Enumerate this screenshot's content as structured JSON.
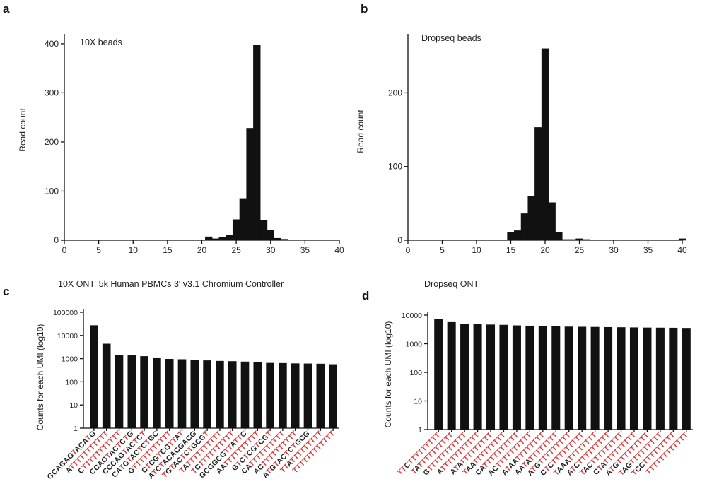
{
  "colors": {
    "bar": "#111111",
    "polyT": "#d93a3a",
    "text": "#222222"
  },
  "panels": [
    {
      "letter": "a",
      "title": "10X beads"
    },
    {
      "letter": "b",
      "title": "Dropseq beads"
    },
    {
      "letter": "c",
      "title": "10X ONT: 5k Human PBMCs 3' v3.1 Chromium Controller"
    },
    {
      "letter": "d",
      "title": "Dropseq ONT"
    }
  ],
  "chart_data": [
    {
      "type": "bar",
      "panel": "a",
      "title": "10X beads",
      "xlabel": "",
      "ylabel": "Read count",
      "xlim": [
        0,
        40
      ],
      "ylim": [
        0,
        420
      ],
      "xticks": [
        0,
        5,
        10,
        15,
        20,
        25,
        30,
        35,
        40
      ],
      "yticks": [
        0,
        100,
        200,
        300,
        400
      ],
      "x": [
        21,
        22,
        23,
        24,
        25,
        26,
        27,
        28,
        29,
        30,
        31,
        32
      ],
      "values": [
        7,
        3,
        6,
        11,
        42,
        85,
        228,
        397,
        41,
        20,
        4,
        2
      ]
    },
    {
      "type": "bar",
      "panel": "b",
      "title": "Dropseq beads",
      "xlabel": "",
      "ylabel": "Read count",
      "xlim": [
        0,
        40
      ],
      "ylim": [
        0,
        280
      ],
      "xticks": [
        0,
        5,
        10,
        15,
        20,
        25,
        30,
        35,
        40
      ],
      "yticks": [
        0,
        100,
        200
      ],
      "x": [
        15,
        16,
        17,
        18,
        19,
        20,
        21,
        22,
        23,
        24,
        25,
        26,
        40
      ],
      "values": [
        11,
        13,
        36,
        60,
        153,
        260,
        51,
        11,
        1,
        1,
        2,
        1,
        2
      ]
    },
    {
      "type": "bar",
      "panel": "c",
      "title": "10X ONT: 5k Human PBMCs 3' v3.1 Chromium Controller",
      "xlabel": "",
      "ylabel": "Counts for each UMI (log10)",
      "log_y": true,
      "ylim": [
        1,
        100000
      ],
      "yticks": [
        "1",
        "10",
        "100",
        "1000",
        "10000",
        "100000"
      ],
      "categories": [
        "GCAGAGTACATG",
        "ATTTTTTTTTTT",
        "CTTTTTTTTTTT",
        "CCAGTACTCTG",
        "CCCAGTACTCT",
        "CATGTACTCTGC",
        "GTTTTTTTTTTT",
        "CTCGTCGTTAT",
        "ATCTACACGACG",
        "TGTACTCTGCGT",
        "TATTTTTTTTTT",
        "TCTTTTTTTTTT",
        "GCGGCGTTATTC",
        "AATTTTTTTTTT",
        "GTCTCGTCGT",
        "CATTTTTTTTTT",
        "ACTTTTTTTTTT",
        "ATGTACTCTGCG",
        "TTATTTTTTTTT",
        "TTTTTTTTTTTT"
      ],
      "values": [
        27000,
        4300,
        1400,
        1350,
        1250,
        1100,
        950,
        920,
        870,
        820,
        780,
        760,
        730,
        700,
        640,
        630,
        610,
        600,
        590,
        560
      ]
    },
    {
      "type": "bar",
      "panel": "d",
      "title": "Dropseq ONT",
      "xlabel": "",
      "ylabel": "Counts for each UMI (log10)",
      "log_y": true,
      "ylim": [
        1,
        10000
      ],
      "yticks": [
        "1",
        "10",
        "100",
        "1000",
        "10000"
      ],
      "categories": [
        "TTCTTTTTTTTT",
        "TATTTTTTTTTT",
        "GTTTTTTTTTTT",
        "ATTTTTTTTTTT",
        "ATATTTTTTTTT",
        "TAATTTTTTTTT",
        "CATTTTTTTTTT",
        "ACTTTTTTTTTT",
        "ATAATTTTTTTT",
        "AATATTTTTTTT",
        "ATGTTTTTTTTT",
        "CTCTTTTTTTTT",
        "TAAATTTTTTTT",
        "ATCTTTTTTTTT",
        "TACTTTTTTTTT",
        "CTATTTTTTTTT",
        "ATGTTTTTTTTT",
        "TAGTTTTTTTTT",
        "TCCTTTTTTTTT",
        "TTTTTTTTTTTT"
      ],
      "values": [
        7200,
        5600,
        4900,
        4700,
        4600,
        4500,
        4300,
        4200,
        4150,
        4100,
        3900,
        3850,
        3800,
        3750,
        3700,
        3650,
        3600,
        3580,
        3550,
        3500
      ]
    }
  ]
}
